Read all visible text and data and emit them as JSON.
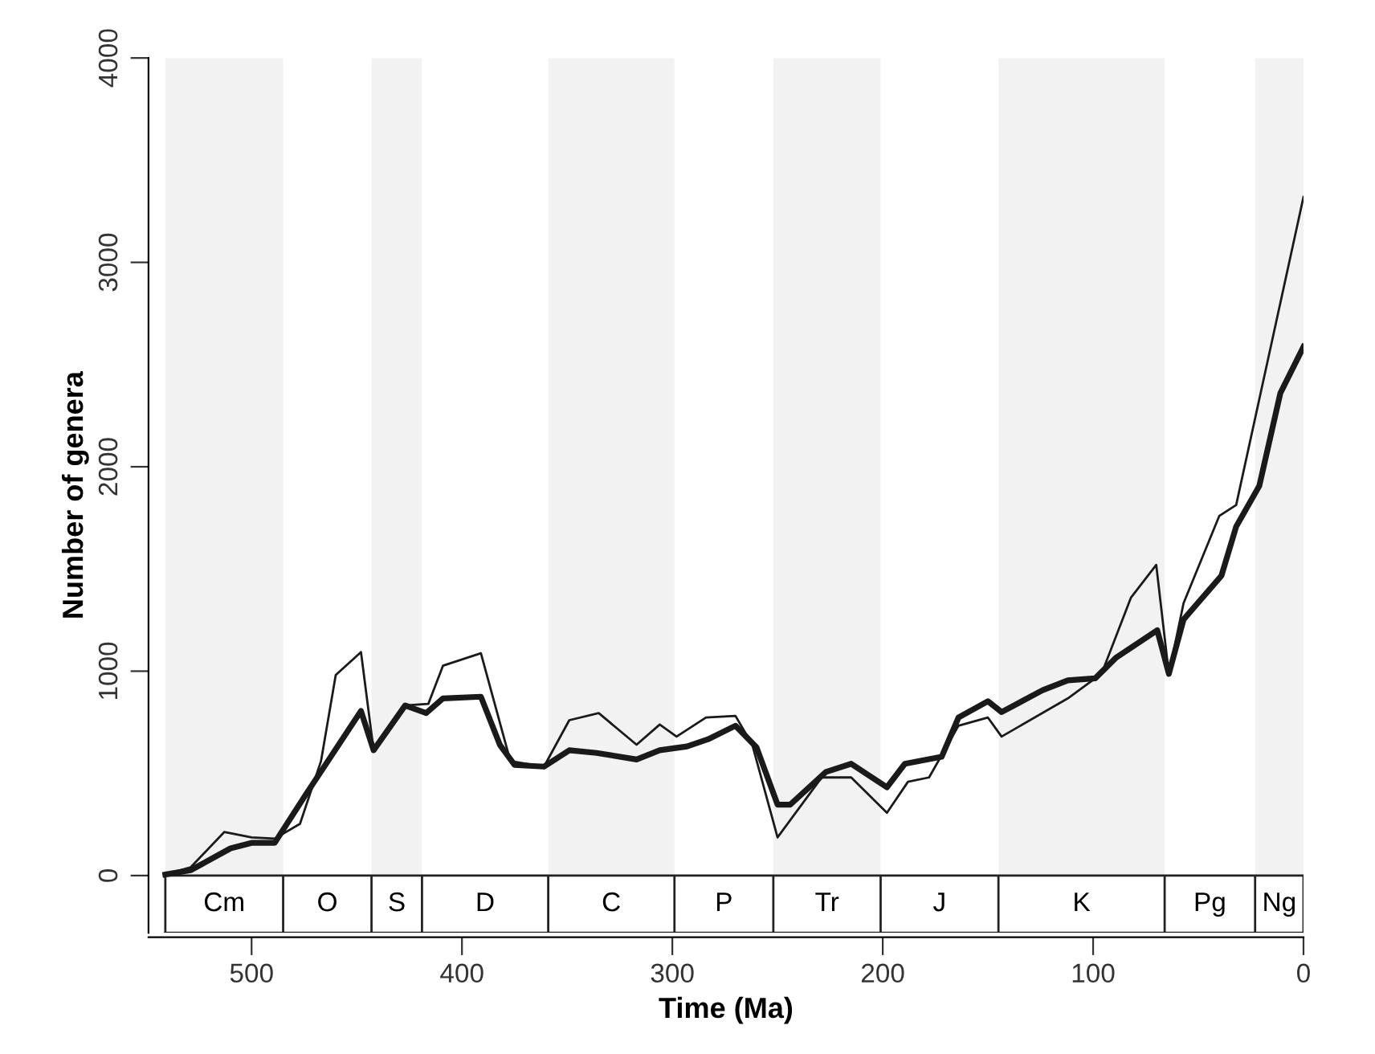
{
  "chart_data": {
    "type": "line",
    "xlabel": "Time (Ma)",
    "ylabel": "Number of genera",
    "xlim": [
      549,
      0
    ],
    "xticks": [
      500,
      400,
      300,
      200,
      100,
      0
    ],
    "ylim": [
      -280,
      4000
    ],
    "yticks": [
      0,
      1000,
      2000,
      3000,
      4000
    ],
    "marker": "none",
    "annotations": [
      "O",
      "D",
      "P",
      "J",
      "Pg"
    ],
    "series": [
      {
        "color": "#1a1a1a",
        "line_style": "solid",
        "x": [
          541,
          529,
          513,
          500,
          489,
          477,
          467,
          460,
          448,
          442,
          427,
          416,
          409,
          391,
          377,
          361,
          349,
          335,
          317,
          306,
          298,
          284,
          270,
          262,
          250,
          229,
          215,
          198,
          188,
          178,
          164,
          150,
          143.5,
          112,
          99,
          96,
          82,
          70,
          64,
          57,
          40,
          32,
          0
        ],
        "values": [
          5,
          40,
          213,
          187,
          181,
          253,
          560,
          981,
          1093,
          613,
          832,
          840,
          1027,
          1088,
          560,
          533,
          760,
          795,
          640,
          739,
          680,
          773,
          781,
          640,
          187,
          480,
          480,
          307,
          459,
          480,
          733,
          773,
          680,
          867,
          965,
          987,
          1360,
          1520,
          987,
          1333,
          1760,
          1813,
          3320
        ]
      },
      {
        "color": "#1a1a1a",
        "line_style": "solid",
        "x": [
          541,
          529,
          510,
          500,
          489,
          474,
          448,
          442,
          427,
          417,
          409,
          391,
          382,
          375,
          361,
          349,
          336,
          317,
          306,
          293,
          283,
          270,
          260,
          250,
          244,
          227,
          215,
          198,
          189.5,
          172,
          164,
          150,
          143.5,
          124,
          112,
          99,
          89,
          69.5,
          64,
          57,
          39,
          32,
          21,
          11,
          0
        ],
        "values": [
          5,
          26,
          133,
          160,
          160,
          400,
          805,
          613,
          832,
          795,
          867,
          875,
          640,
          541,
          533,
          613,
          600,
          568,
          613,
          632,
          667,
          733,
          627,
          347,
          347,
          507,
          547,
          432,
          547,
          581,
          773,
          853,
          800,
          907,
          955,
          965,
          1067,
          1200,
          987,
          1253,
          1467,
          1707,
          1907,
          2360,
          2587
        ]
      }
    ],
    "bands": [
      {
        "axis": "x",
        "from": 541,
        "to": 485,
        "label": "Cm",
        "color": "#f2f2f2"
      },
      {
        "axis": "x",
        "from": 443,
        "to": 419,
        "label": "S",
        "color": "#f2f2f2"
      },
      {
        "axis": "x",
        "from": 359,
        "to": 299,
        "label": "C",
        "color": "#f2f2f2"
      },
      {
        "axis": "x",
        "from": 252,
        "to": 201,
        "label": "Tr",
        "color": "#f2f2f2"
      },
      {
        "axis": "x",
        "from": 145,
        "to": 66,
        "label": "K",
        "color": "#f2f2f2"
      },
      {
        "axis": "x",
        "from": 23,
        "to": 0,
        "label": "Ng",
        "color": "#f2f2f2"
      }
    ]
  }
}
